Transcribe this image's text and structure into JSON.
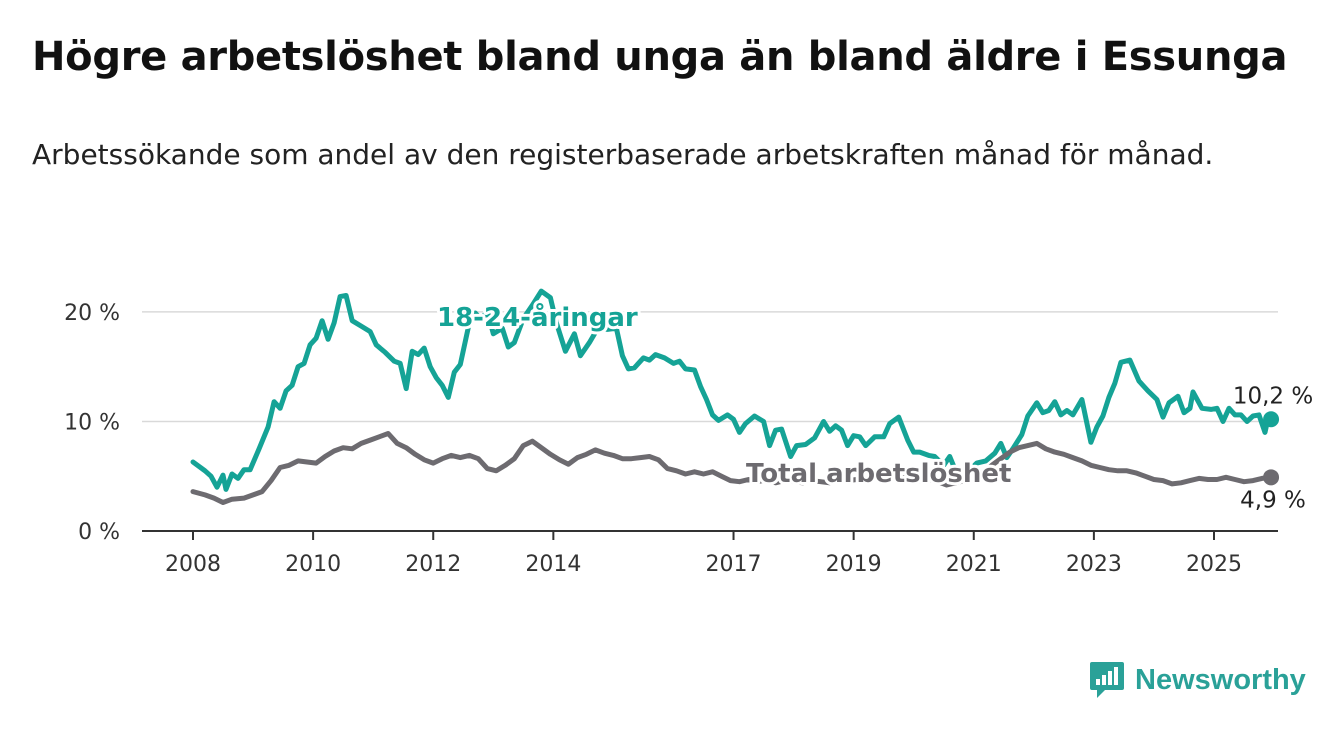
{
  "title": "Högre arbetslöshet bland unga än bland äldre i Essunga",
  "subtitle": "Arbetssökande som andel av den registerbaserade arbetskraften månad för månad.",
  "brand": {
    "name": "Newsworthy"
  },
  "colors": {
    "youth": "#15a396",
    "total": "#6d6b70",
    "grid": "#d9d9d9",
    "axis": "#333333",
    "brand": "#2aa198"
  },
  "chart_data": {
    "type": "line",
    "x_unit": "year (monthly data)",
    "ylim": [
      0,
      22
    ],
    "yticks": [
      0,
      10,
      20
    ],
    "ytick_labels": [
      "0 %",
      "10 %",
      "20 %"
    ],
    "xticks": [
      2008,
      2010,
      2012,
      2014,
      2017,
      2019,
      2021,
      2023,
      2025
    ],
    "xtick_labels": [
      "2008",
      "2010",
      "2012",
      "2014",
      "2017",
      "2019",
      "2021",
      "2023",
      "2025"
    ],
    "xlim": [
      2007.5,
      2026.1
    ],
    "grid": true,
    "series": [
      {
        "name": "18-24-åringar",
        "label": "18-24-åringar",
        "end_label": "10,2 %",
        "points": [
          [
            2008.0,
            6.3
          ],
          [
            2008.2,
            5.5
          ],
          [
            2008.3,
            5.0
          ],
          [
            2008.4,
            4.0
          ],
          [
            2008.5,
            5.1
          ],
          [
            2008.55,
            3.8
          ],
          [
            2008.65,
            5.2
          ],
          [
            2008.75,
            4.8
          ],
          [
            2008.85,
            5.6
          ],
          [
            2008.95,
            5.6
          ],
          [
            2009.1,
            7.5
          ],
          [
            2009.25,
            9.5
          ],
          [
            2009.35,
            11.8
          ],
          [
            2009.45,
            11.2
          ],
          [
            2009.55,
            12.8
          ],
          [
            2009.65,
            13.3
          ],
          [
            2009.75,
            15.0
          ],
          [
            2009.85,
            15.3
          ],
          [
            2009.95,
            17.0
          ],
          [
            2010.05,
            17.6
          ],
          [
            2010.15,
            19.2
          ],
          [
            2010.25,
            17.5
          ],
          [
            2010.35,
            19.0
          ],
          [
            2010.45,
            21.4
          ],
          [
            2010.55,
            21.5
          ],
          [
            2010.65,
            19.2
          ],
          [
            2010.8,
            18.7
          ],
          [
            2010.95,
            18.2
          ],
          [
            2011.05,
            17.0
          ],
          [
            2011.2,
            16.3
          ],
          [
            2011.35,
            15.5
          ],
          [
            2011.45,
            15.3
          ],
          [
            2011.55,
            13.0
          ],
          [
            2011.65,
            16.4
          ],
          [
            2011.75,
            16.1
          ],
          [
            2011.85,
            16.7
          ],
          [
            2011.95,
            15.0
          ],
          [
            2012.05,
            14.0
          ],
          [
            2012.15,
            13.3
          ],
          [
            2012.25,
            12.2
          ],
          [
            2012.35,
            14.5
          ],
          [
            2012.45,
            15.2
          ],
          [
            2012.6,
            19.0
          ],
          [
            2012.7,
            19.9
          ],
          [
            2012.8,
            19.3
          ],
          [
            2012.9,
            20.1
          ],
          [
            2013.0,
            18.0
          ],
          [
            2013.15,
            18.5
          ],
          [
            2013.25,
            16.8
          ],
          [
            2013.35,
            17.2
          ],
          [
            2013.5,
            19.4
          ],
          [
            2013.65,
            20.6
          ],
          [
            2013.8,
            21.9
          ],
          [
            2013.95,
            21.3
          ],
          [
            2014.05,
            19.0
          ],
          [
            2014.2,
            16.4
          ],
          [
            2014.35,
            18.0
          ],
          [
            2014.45,
            16.0
          ],
          [
            2014.6,
            17.2
          ],
          [
            2014.75,
            18.6
          ],
          [
            2014.9,
            18.4
          ],
          [
            2015.05,
            18.5
          ],
          [
            2015.15,
            16.0
          ],
          [
            2015.25,
            14.8
          ],
          [
            2015.35,
            14.9
          ],
          [
            2015.5,
            15.8
          ],
          [
            2015.6,
            15.6
          ],
          [
            2015.7,
            16.1
          ],
          [
            2015.85,
            15.8
          ],
          [
            2016.0,
            15.3
          ],
          [
            2016.1,
            15.5
          ],
          [
            2016.2,
            14.8
          ],
          [
            2016.35,
            14.7
          ],
          [
            2016.45,
            13.2
          ],
          [
            2016.55,
            12.0
          ],
          [
            2016.65,
            10.6
          ],
          [
            2016.75,
            10.1
          ],
          [
            2016.9,
            10.6
          ],
          [
            2017.0,
            10.2
          ],
          [
            2017.1,
            9.0
          ],
          [
            2017.2,
            9.8
          ],
          [
            2017.35,
            10.5
          ],
          [
            2017.5,
            10.0
          ],
          [
            2017.6,
            7.8
          ],
          [
            2017.7,
            9.2
          ],
          [
            2017.8,
            9.3
          ],
          [
            2017.95,
            6.8
          ],
          [
            2018.05,
            7.8
          ],
          [
            2018.2,
            7.9
          ],
          [
            2018.35,
            8.5
          ],
          [
            2018.5,
            10.0
          ],
          [
            2018.6,
            9.1
          ],
          [
            2018.7,
            9.6
          ],
          [
            2018.8,
            9.2
          ],
          [
            2018.9,
            7.8
          ],
          [
            2019.0,
            8.7
          ],
          [
            2019.1,
            8.6
          ],
          [
            2019.2,
            7.8
          ],
          [
            2019.35,
            8.6
          ],
          [
            2019.5,
            8.6
          ],
          [
            2019.6,
            9.8
          ],
          [
            2019.75,
            10.4
          ],
          [
            2019.9,
            8.3
          ],
          [
            2020.0,
            7.2
          ],
          [
            2020.1,
            7.2
          ],
          [
            2020.25,
            6.9
          ],
          [
            2020.35,
            6.8
          ],
          [
            2020.5,
            6.0
          ],
          [
            2020.6,
            6.8
          ],
          [
            2020.75,
            4.8
          ],
          [
            2020.9,
            5.4
          ],
          [
            2021.05,
            6.2
          ],
          [
            2021.2,
            6.4
          ],
          [
            2021.35,
            7.1
          ],
          [
            2021.45,
            8.0
          ],
          [
            2021.55,
            6.7
          ],
          [
            2021.65,
            7.5
          ],
          [
            2021.8,
            8.8
          ],
          [
            2021.9,
            10.5
          ],
          [
            2022.05,
            11.7
          ],
          [
            2022.15,
            10.8
          ],
          [
            2022.25,
            11.0
          ],
          [
            2022.35,
            11.8
          ],
          [
            2022.45,
            10.6
          ],
          [
            2022.55,
            11.0
          ],
          [
            2022.65,
            10.6
          ],
          [
            2022.8,
            12.0
          ],
          [
            2022.95,
            8.1
          ],
          [
            2023.05,
            9.5
          ],
          [
            2023.15,
            10.5
          ],
          [
            2023.25,
            12.2
          ],
          [
            2023.35,
            13.5
          ],
          [
            2023.45,
            15.4
          ],
          [
            2023.6,
            15.6
          ],
          [
            2023.75,
            13.7
          ],
          [
            2023.9,
            12.8
          ],
          [
            2024.05,
            12.0
          ],
          [
            2024.15,
            10.4
          ],
          [
            2024.25,
            11.7
          ],
          [
            2024.4,
            12.3
          ],
          [
            2024.5,
            10.8
          ],
          [
            2024.6,
            11.2
          ],
          [
            2024.65,
            12.7
          ],
          [
            2024.8,
            11.2
          ],
          [
            2024.95,
            11.1
          ],
          [
            2025.05,
            11.2
          ],
          [
            2025.15,
            10.0
          ],
          [
            2025.25,
            11.2
          ],
          [
            2025.35,
            10.6
          ],
          [
            2025.45,
            10.6
          ],
          [
            2025.55,
            10.0
          ],
          [
            2025.65,
            10.5
          ],
          [
            2025.75,
            10.6
          ],
          [
            2025.85,
            9.0
          ],
          [
            2025.9,
            10.3
          ],
          [
            2025.95,
            10.2
          ]
        ]
      },
      {
        "name": "Total arbetslöshet",
        "label": "Total arbetslöshet",
        "end_label": "4,9 %",
        "points": [
          [
            2008.0,
            3.6
          ],
          [
            2008.2,
            3.3
          ],
          [
            2008.35,
            3.0
          ],
          [
            2008.5,
            2.6
          ],
          [
            2008.65,
            2.9
          ],
          [
            2008.85,
            3.0
          ],
          [
            2009.0,
            3.3
          ],
          [
            2009.15,
            3.6
          ],
          [
            2009.3,
            4.6
          ],
          [
            2009.45,
            5.8
          ],
          [
            2009.6,
            6.0
          ],
          [
            2009.75,
            6.4
          ],
          [
            2009.9,
            6.3
          ],
          [
            2010.05,
            6.2
          ],
          [
            2010.2,
            6.8
          ],
          [
            2010.35,
            7.3
          ],
          [
            2010.5,
            7.6
          ],
          [
            2010.65,
            7.5
          ],
          [
            2010.8,
            8.0
          ],
          [
            2010.95,
            8.3
          ],
          [
            2011.1,
            8.6
          ],
          [
            2011.25,
            8.9
          ],
          [
            2011.4,
            8.0
          ],
          [
            2011.55,
            7.6
          ],
          [
            2011.7,
            7.0
          ],
          [
            2011.85,
            6.5
          ],
          [
            2012.0,
            6.2
          ],
          [
            2012.15,
            6.6
          ],
          [
            2012.3,
            6.9
          ],
          [
            2012.45,
            6.7
          ],
          [
            2012.6,
            6.9
          ],
          [
            2012.75,
            6.6
          ],
          [
            2012.9,
            5.7
          ],
          [
            2013.05,
            5.5
          ],
          [
            2013.2,
            6.0
          ],
          [
            2013.35,
            6.6
          ],
          [
            2013.5,
            7.8
          ],
          [
            2013.65,
            8.2
          ],
          [
            2013.8,
            7.6
          ],
          [
            2013.95,
            7.0
          ],
          [
            2014.1,
            6.5
          ],
          [
            2014.25,
            6.1
          ],
          [
            2014.4,
            6.7
          ],
          [
            2014.55,
            7.0
          ],
          [
            2014.7,
            7.4
          ],
          [
            2014.85,
            7.1
          ],
          [
            2015.0,
            6.9
          ],
          [
            2015.15,
            6.6
          ],
          [
            2015.3,
            6.6
          ],
          [
            2015.45,
            6.7
          ],
          [
            2015.6,
            6.8
          ],
          [
            2015.75,
            6.5
          ],
          [
            2015.9,
            5.7
          ],
          [
            2016.05,
            5.5
          ],
          [
            2016.2,
            5.2
          ],
          [
            2016.35,
            5.4
          ],
          [
            2016.5,
            5.2
          ],
          [
            2016.65,
            5.4
          ],
          [
            2016.8,
            5.0
          ],
          [
            2016.95,
            4.6
          ],
          [
            2017.1,
            4.5
          ],
          [
            2017.25,
            4.7
          ],
          [
            2017.4,
            4.5
          ],
          [
            2017.55,
            4.7
          ],
          [
            2017.7,
            4.4
          ],
          [
            2017.85,
            4.6
          ],
          [
            2018.0,
            4.5
          ],
          [
            2018.15,
            4.4
          ],
          [
            2018.3,
            4.6
          ],
          [
            2018.45,
            4.5
          ],
          [
            2018.6,
            4.4
          ],
          [
            2018.75,
            4.9
          ],
          [
            2018.9,
            4.6
          ],
          [
            2019.05,
            4.7
          ],
          [
            2019.2,
            4.6
          ],
          [
            2019.35,
            4.8
          ],
          [
            2019.5,
            4.9
          ],
          [
            2019.65,
            4.7
          ],
          [
            2019.8,
            4.9
          ],
          [
            2019.95,
            4.7
          ],
          [
            2020.1,
            4.6
          ],
          [
            2020.25,
            4.7
          ],
          [
            2020.4,
            4.5
          ],
          [
            2020.55,
            4.2
          ],
          [
            2020.7,
            4.4
          ],
          [
            2020.85,
            4.6
          ],
          [
            2021.0,
            4.8
          ],
          [
            2021.15,
            5.2
          ],
          [
            2021.3,
            6.0
          ],
          [
            2021.45,
            6.6
          ],
          [
            2021.6,
            7.2
          ],
          [
            2021.75,
            7.6
          ],
          [
            2021.9,
            7.8
          ],
          [
            2022.05,
            8.0
          ],
          [
            2022.2,
            7.5
          ],
          [
            2022.35,
            7.2
          ],
          [
            2022.5,
            7.0
          ],
          [
            2022.65,
            6.7
          ],
          [
            2022.8,
            6.4
          ],
          [
            2022.95,
            6.0
          ],
          [
            2023.1,
            5.8
          ],
          [
            2023.25,
            5.6
          ],
          [
            2023.4,
            5.5
          ],
          [
            2023.55,
            5.5
          ],
          [
            2023.7,
            5.3
          ],
          [
            2023.85,
            5.0
          ],
          [
            2024.0,
            4.7
          ],
          [
            2024.15,
            4.6
          ],
          [
            2024.3,
            4.3
          ],
          [
            2024.45,
            4.4
          ],
          [
            2024.6,
            4.6
          ],
          [
            2024.75,
            4.8
          ],
          [
            2024.9,
            4.7
          ],
          [
            2025.05,
            4.7
          ],
          [
            2025.2,
            4.9
          ],
          [
            2025.35,
            4.7
          ],
          [
            2025.5,
            4.5
          ],
          [
            2025.65,
            4.6
          ],
          [
            2025.8,
            4.8
          ],
          [
            2025.95,
            4.9
          ]
        ]
      }
    ]
  }
}
